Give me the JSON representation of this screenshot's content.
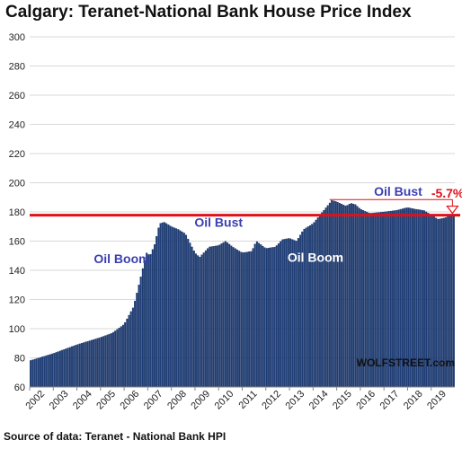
{
  "title": "Calgary: Teranet-National Bank House Price Index",
  "source": "Source of data: Teranet - National Bank HPI",
  "brand": "WOLFSTREET.com",
  "colors": {
    "bar": "#1F3F7A",
    "bar_edge": "#0F2550",
    "reference_line": "#E0101A",
    "annotation_blue": "#3A3FB0",
    "annotation_white": "#ffffff",
    "annotation_red": "#E0101A"
  },
  "chart_data": {
    "type": "bar",
    "x_start": 2002,
    "x_end": 2020,
    "periods_per_year": 12,
    "ylim": [
      60,
      300
    ],
    "yticks": [
      60,
      80,
      100,
      120,
      140,
      160,
      180,
      200,
      220,
      240,
      260,
      280,
      300
    ],
    "xtick_labels": [
      "2002",
      "2003",
      "2004",
      "2005",
      "2006",
      "2007",
      "2008",
      "2009",
      "2010",
      "2011",
      "2012",
      "2013",
      "2014",
      "2015",
      "2016",
      "2017",
      "2018",
      "2019"
    ],
    "grid": true,
    "keypoints": [
      [
        2002.0,
        78
      ],
      [
        2003.0,
        83
      ],
      [
        2004.0,
        89
      ],
      [
        2005.0,
        94
      ],
      [
        2005.5,
        97
      ],
      [
        2006.0,
        103
      ],
      [
        2006.4,
        115
      ],
      [
        2006.7,
        135
      ],
      [
        2006.95,
        152
      ],
      [
        2007.1,
        150
      ],
      [
        2007.3,
        158
      ],
      [
        2007.5,
        172
      ],
      [
        2007.7,
        173
      ],
      [
        2008.0,
        170
      ],
      [
        2008.3,
        168
      ],
      [
        2008.6,
        165
      ],
      [
        2009.0,
        152
      ],
      [
        2009.2,
        149
      ],
      [
        2009.6,
        156
      ],
      [
        2010.0,
        157
      ],
      [
        2010.3,
        160
      ],
      [
        2010.6,
        156
      ],
      [
        2011.0,
        152
      ],
      [
        2011.4,
        153
      ],
      [
        2011.6,
        160
      ],
      [
        2012.0,
        155
      ],
      [
        2012.4,
        156
      ],
      [
        2012.7,
        161
      ],
      [
        2013.0,
        162
      ],
      [
        2013.3,
        160
      ],
      [
        2013.6,
        168
      ],
      [
        2014.0,
        172
      ],
      [
        2014.3,
        178
      ],
      [
        2014.6,
        184
      ],
      [
        2014.8,
        188
      ],
      [
        2015.0,
        187
      ],
      [
        2015.4,
        184
      ],
      [
        2015.6,
        186
      ],
      [
        2015.8,
        185
      ],
      [
        2016.0,
        182
      ],
      [
        2016.4,
        179
      ],
      [
        2017.0,
        180
      ],
      [
        2017.5,
        181
      ],
      [
        2018.0,
        183
      ],
      [
        2018.3,
        182
      ],
      [
        2018.7,
        181
      ],
      [
        2019.0,
        178
      ],
      [
        2019.3,
        175
      ],
      [
        2019.6,
        176
      ],
      [
        2019.85,
        178
      ]
    ],
    "reference_line": 177.8,
    "annotations": [
      {
        "text": "Oil Boom",
        "x": 2005.9,
        "y": 145,
        "color": "blue"
      },
      {
        "text": "Oil Bust",
        "x": 2010.0,
        "y": 170,
        "color": "blue"
      },
      {
        "text": "Oil Boom",
        "x": 2014.1,
        "y": 146,
        "color": "white"
      },
      {
        "text": "Oil Bust",
        "x": 2017.6,
        "y": 191,
        "color": "blue"
      },
      {
        "text": "-5.7%",
        "x": 2019.7,
        "y": 190,
        "color": "red"
      }
    ]
  }
}
